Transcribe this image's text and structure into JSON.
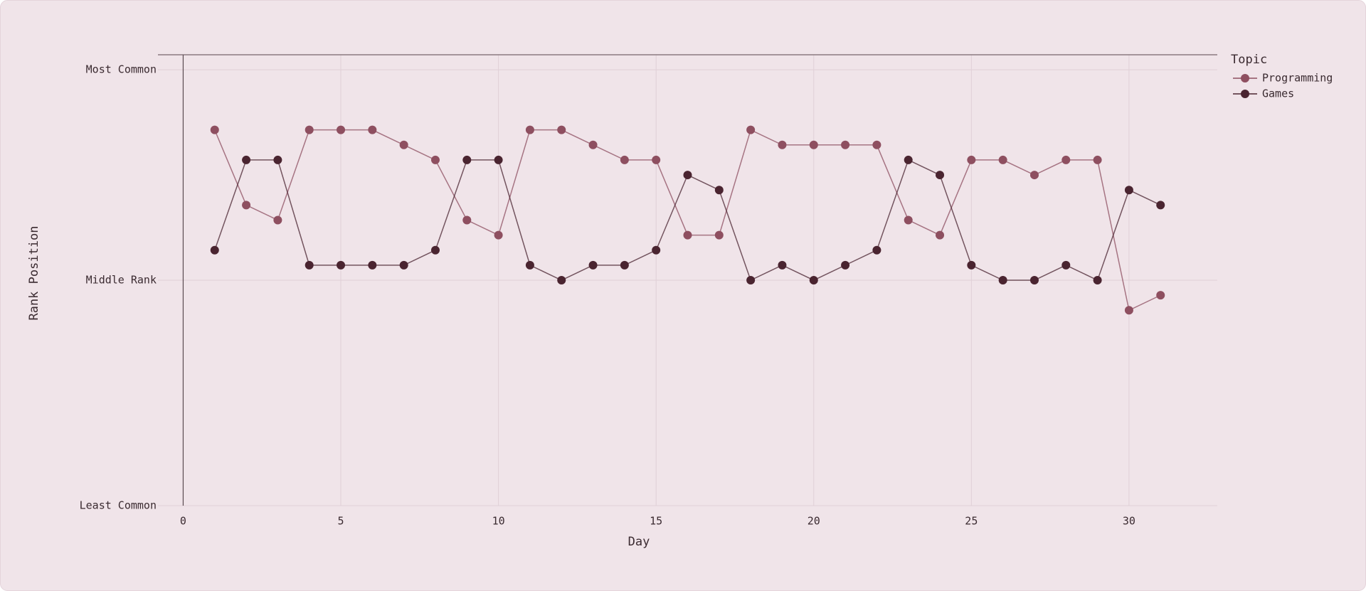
{
  "chart_data": {
    "type": "line",
    "x_label": "Day",
    "y_label": "Rank Position",
    "x": [
      1,
      2,
      3,
      4,
      5,
      6,
      7,
      8,
      9,
      10,
      11,
      12,
      13,
      14,
      15,
      16,
      17,
      18,
      19,
      20,
      21,
      22,
      23,
      24,
      25,
      26,
      27,
      28,
      29,
      30,
      31
    ],
    "series": [
      {
        "name": "Programming",
        "color": "#8e4f60",
        "values": [
          5,
          10,
          11,
          5,
          5,
          5,
          6,
          7,
          11,
          12,
          5,
          5,
          6,
          7,
          7,
          12,
          12,
          5,
          6,
          6,
          6,
          6,
          11,
          12,
          7,
          7,
          8,
          7,
          7,
          17,
          16
        ]
      },
      {
        "name": "Games",
        "color": "#4a2430",
        "values": [
          13,
          7,
          7,
          14,
          14,
          14,
          14,
          13,
          7,
          7,
          14,
          15,
          14,
          14,
          13,
          8,
          9,
          15,
          14,
          15,
          14,
          13,
          7,
          8,
          14,
          15,
          15,
          14,
          15,
          9,
          10
        ]
      }
    ],
    "xlim": [
      -0.8,
      32.8
    ],
    "xticks": [
      0,
      5,
      10,
      15,
      20,
      25,
      30
    ],
    "ylim": [
      30,
      0
    ],
    "yticks": [
      {
        "value": 1,
        "label": "Most Common"
      },
      {
        "value": 15,
        "label": "Middle Rank"
      },
      {
        "value": 30,
        "label": "Least Common"
      }
    ],
    "grid": true,
    "legend_title": "Topic",
    "legend": "right"
  }
}
